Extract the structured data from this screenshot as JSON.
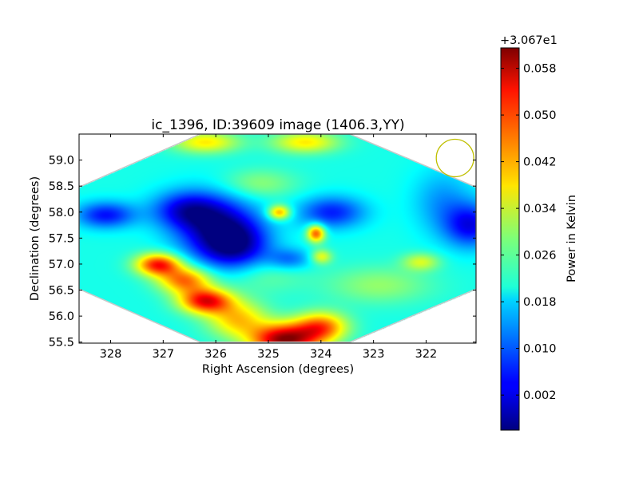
{
  "chart_data": {
    "type": "heatmap",
    "title": "ic_1396, ID:39609 image (1406.3,YY)",
    "xlabel": "Right Ascension (degrees)",
    "ylabel": "Declination (degrees)",
    "xlim": [
      328.6,
      321.05
    ],
    "ylim": [
      55.48,
      59.5
    ],
    "x_ticks": [
      328,
      327,
      326,
      325,
      324,
      323,
      322
    ],
    "y_ticks": [
      55.5,
      56.0,
      56.5,
      57.0,
      57.5,
      58.0,
      58.5,
      59.0
    ],
    "colorbar": {
      "label": "Power in Kelvin",
      "offset_text": "+3.067e1",
      "ticks": [
        0.002,
        0.01,
        0.018,
        0.026,
        0.034,
        0.042,
        0.05,
        0.058
      ],
      "range": [
        -0.004,
        0.0615
      ],
      "colormap": "jet"
    },
    "footprint": {
      "shape": "hexagon",
      "corners": [
        [
          326.3,
          59.5
        ],
        [
          323.45,
          59.5
        ],
        [
          321.05,
          58.48
        ],
        [
          321.05,
          56.52
        ],
        [
          323.45,
          55.5
        ],
        [
          326.3,
          55.5
        ],
        [
          328.6,
          56.52
        ],
        [
          328.6,
          58.48
        ]
      ]
    },
    "beam": {
      "ra": 321.45,
      "dec": 59.04,
      "radius_deg": 0.36,
      "color": "#bfbf00"
    },
    "background_level": 0.022,
    "features": [
      {
        "ra": 326.0,
        "dec": 57.7,
        "value": 0.001,
        "sigma_ra": 0.55,
        "sigma_dec": 0.45
      },
      {
        "ra": 325.6,
        "dec": 57.35,
        "value": 0.004,
        "sigma_ra": 0.45,
        "sigma_dec": 0.35
      },
      {
        "ra": 326.6,
        "dec": 58.05,
        "value": 0.006,
        "sigma_ra": 0.45,
        "sigma_dec": 0.25
      },
      {
        "ra": 328.1,
        "dec": 57.95,
        "value": 0.005,
        "sigma_ra": 0.4,
        "sigma_dec": 0.18
      },
      {
        "ra": 323.8,
        "dec": 58.0,
        "value": 0.006,
        "sigma_ra": 0.45,
        "sigma_dec": 0.22
      },
      {
        "ra": 324.6,
        "dec": 57.1,
        "value": 0.011,
        "sigma_ra": 0.3,
        "sigma_dec": 0.15
      },
      {
        "ra": 321.15,
        "dec": 57.75,
        "value": 0.004,
        "sigma_ra": 0.35,
        "sigma_dec": 0.3
      },
      {
        "ra": 321.7,
        "dec": 58.2,
        "value": 0.014,
        "sigma_ra": 0.4,
        "sigma_dec": 0.45
      },
      {
        "ra": 324.7,
        "dec": 55.55,
        "value": 0.06,
        "sigma_ra": 0.45,
        "sigma_dec": 0.22
      },
      {
        "ra": 324.0,
        "dec": 55.8,
        "value": 0.046,
        "sigma_ra": 0.35,
        "sigma_dec": 0.2
      },
      {
        "ra": 325.6,
        "dec": 55.95,
        "value": 0.04,
        "sigma_ra": 0.4,
        "sigma_dec": 0.25
      },
      {
        "ra": 327.1,
        "dec": 57.0,
        "value": 0.052,
        "sigma_ra": 0.3,
        "sigma_dec": 0.15
      },
      {
        "ra": 326.2,
        "dec": 56.3,
        "value": 0.053,
        "sigma_ra": 0.35,
        "sigma_dec": 0.17
      },
      {
        "ra": 326.6,
        "dec": 56.7,
        "value": 0.046,
        "sigma_ra": 0.35,
        "sigma_dec": 0.18
      },
      {
        "ra": 324.1,
        "dec": 57.6,
        "value": 0.049,
        "sigma_ra": 0.12,
        "sigma_dec": 0.12
      },
      {
        "ra": 324.8,
        "dec": 58.0,
        "value": 0.044,
        "sigma_ra": 0.15,
        "sigma_dec": 0.1
      },
      {
        "ra": 324.0,
        "dec": 57.15,
        "value": 0.036,
        "sigma_ra": 0.14,
        "sigma_dec": 0.1
      },
      {
        "ra": 326.2,
        "dec": 59.35,
        "value": 0.038,
        "sigma_ra": 0.45,
        "sigma_dec": 0.15
      },
      {
        "ra": 324.3,
        "dec": 59.35,
        "value": 0.038,
        "sigma_ra": 0.45,
        "sigma_dec": 0.15
      },
      {
        "ra": 322.1,
        "dec": 57.05,
        "value": 0.034,
        "sigma_ra": 0.25,
        "sigma_dec": 0.12
      },
      {
        "ra": 325.2,
        "dec": 58.55,
        "value": 0.03,
        "sigma_ra": 0.5,
        "sigma_dec": 0.2
      },
      {
        "ra": 322.9,
        "dec": 56.6,
        "value": 0.03,
        "sigma_ra": 0.7,
        "sigma_dec": 0.25
      },
      {
        "ra": 325.2,
        "dec": 56.8,
        "value": 0.028,
        "sigma_ra": 0.6,
        "sigma_dec": 0.25
      }
    ]
  }
}
